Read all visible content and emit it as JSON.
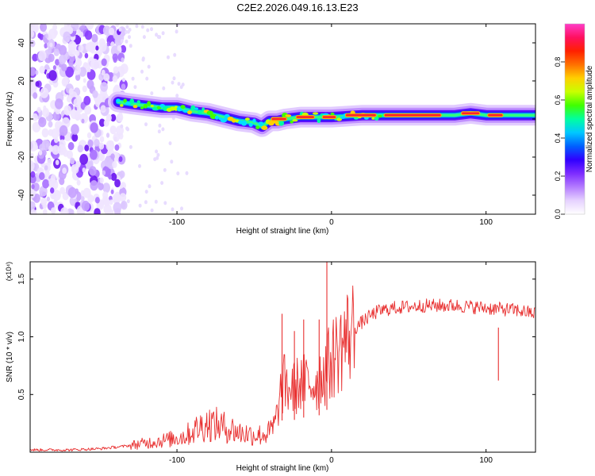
{
  "page_title": "C2E2.2026.049.16.13.E23",
  "chart_data": [
    {
      "type": "heatmap",
      "title": "C2E2.2026.049.16.13.E23",
      "xlabel": "Height of straight line (km)",
      "ylabel": "Frequency (Hz)",
      "xlim": [
        -195,
        132
      ],
      "ylim": [
        -50,
        50
      ],
      "x_ticks": [
        -100,
        0,
        100
      ],
      "y_ticks": [
        -40,
        -20,
        0,
        20,
        40
      ],
      "grid": false,
      "colorbar": {
        "label": "Normalized spectral amplitude",
        "range": [
          0,
          1
        ],
        "ticks": [
          0.0,
          0.2,
          0.4,
          0.6,
          0.8
        ],
        "colors": [
          "#ffffff",
          "#e6d2ff",
          "#b47cff",
          "#7d2cff",
          "#3000ff",
          "#0060ff",
          "#00c8ff",
          "#00ffa0",
          "#40ff00",
          "#c8ff00",
          "#ffd000",
          "#ff7000",
          "#ff2000",
          "#ff1060",
          "#ff3cc8"
        ]
      },
      "ridge": {
        "x": [
          -138,
          -130,
          -120,
          -110,
          -100,
          -90,
          -80,
          -70,
          -60,
          -50,
          -45,
          -40,
          -35,
          -30,
          -20,
          -10,
          0,
          20,
          40,
          60,
          80,
          90,
          100,
          110,
          132
        ],
        "y": [
          9,
          8,
          7,
          6,
          6,
          4,
          3,
          1,
          -1,
          -2,
          -4,
          -1,
          -1,
          0,
          1,
          1,
          1,
          2,
          2,
          2,
          2,
          3,
          2,
          2,
          2
        ]
      },
      "noise_region_x": [
        -195,
        -138
      ]
    },
    {
      "type": "line",
      "xlabel": "Height of straight line (km)",
      "ylabel": "SNR (10 * v/v)",
      "y_multiplier": "(x10⁴)",
      "xlim": [
        -195,
        132
      ],
      "ylim": [
        0,
        1.65
      ],
      "x_ticks": [
        -100,
        0,
        100
      ],
      "y_ticks": [
        0.5,
        1.0,
        1.5
      ],
      "grid": false,
      "series": [
        {
          "name": "SNR",
          "color": "#e83030",
          "x": [
            -195,
            -170,
            -150,
            -135,
            -125,
            -115,
            -105,
            -95,
            -90,
            -85,
            -80,
            -75,
            -70,
            -65,
            -60,
            -55,
            -50,
            -45,
            -40,
            -36,
            -33,
            -31,
            -28,
            -25,
            -20,
            -15,
            -10,
            -5,
            -2,
            0,
            5,
            10,
            15,
            20,
            25,
            30,
            40,
            50,
            60,
            70,
            80,
            90,
            100,
            110,
            120,
            132
          ],
          "y": [
            0.02,
            0.02,
            0.03,
            0.05,
            0.07,
            0.09,
            0.11,
            0.14,
            0.18,
            0.22,
            0.25,
            0.24,
            0.22,
            0.2,
            0.17,
            0.16,
            0.15,
            0.15,
            0.17,
            0.25,
            0.5,
            0.6,
            0.55,
            0.55,
            0.6,
            0.6,
            0.6,
            0.7,
            0.75,
            0.8,
            0.9,
            1.0,
            1.07,
            1.13,
            1.18,
            1.22,
            1.25,
            1.26,
            1.27,
            1.27,
            1.27,
            1.26,
            1.25,
            1.24,
            1.23,
            1.2
          ]
        }
      ],
      "spikes": [
        {
          "x": -32,
          "y": 1.2
        },
        {
          "x": -24,
          "y": 1.05
        },
        {
          "x": -18,
          "y": 1.15
        },
        {
          "x": -8,
          "y": 1.15
        },
        {
          "x": -3,
          "y": 1.65
        },
        {
          "x": 108,
          "y": 1.08
        }
      ]
    }
  ]
}
